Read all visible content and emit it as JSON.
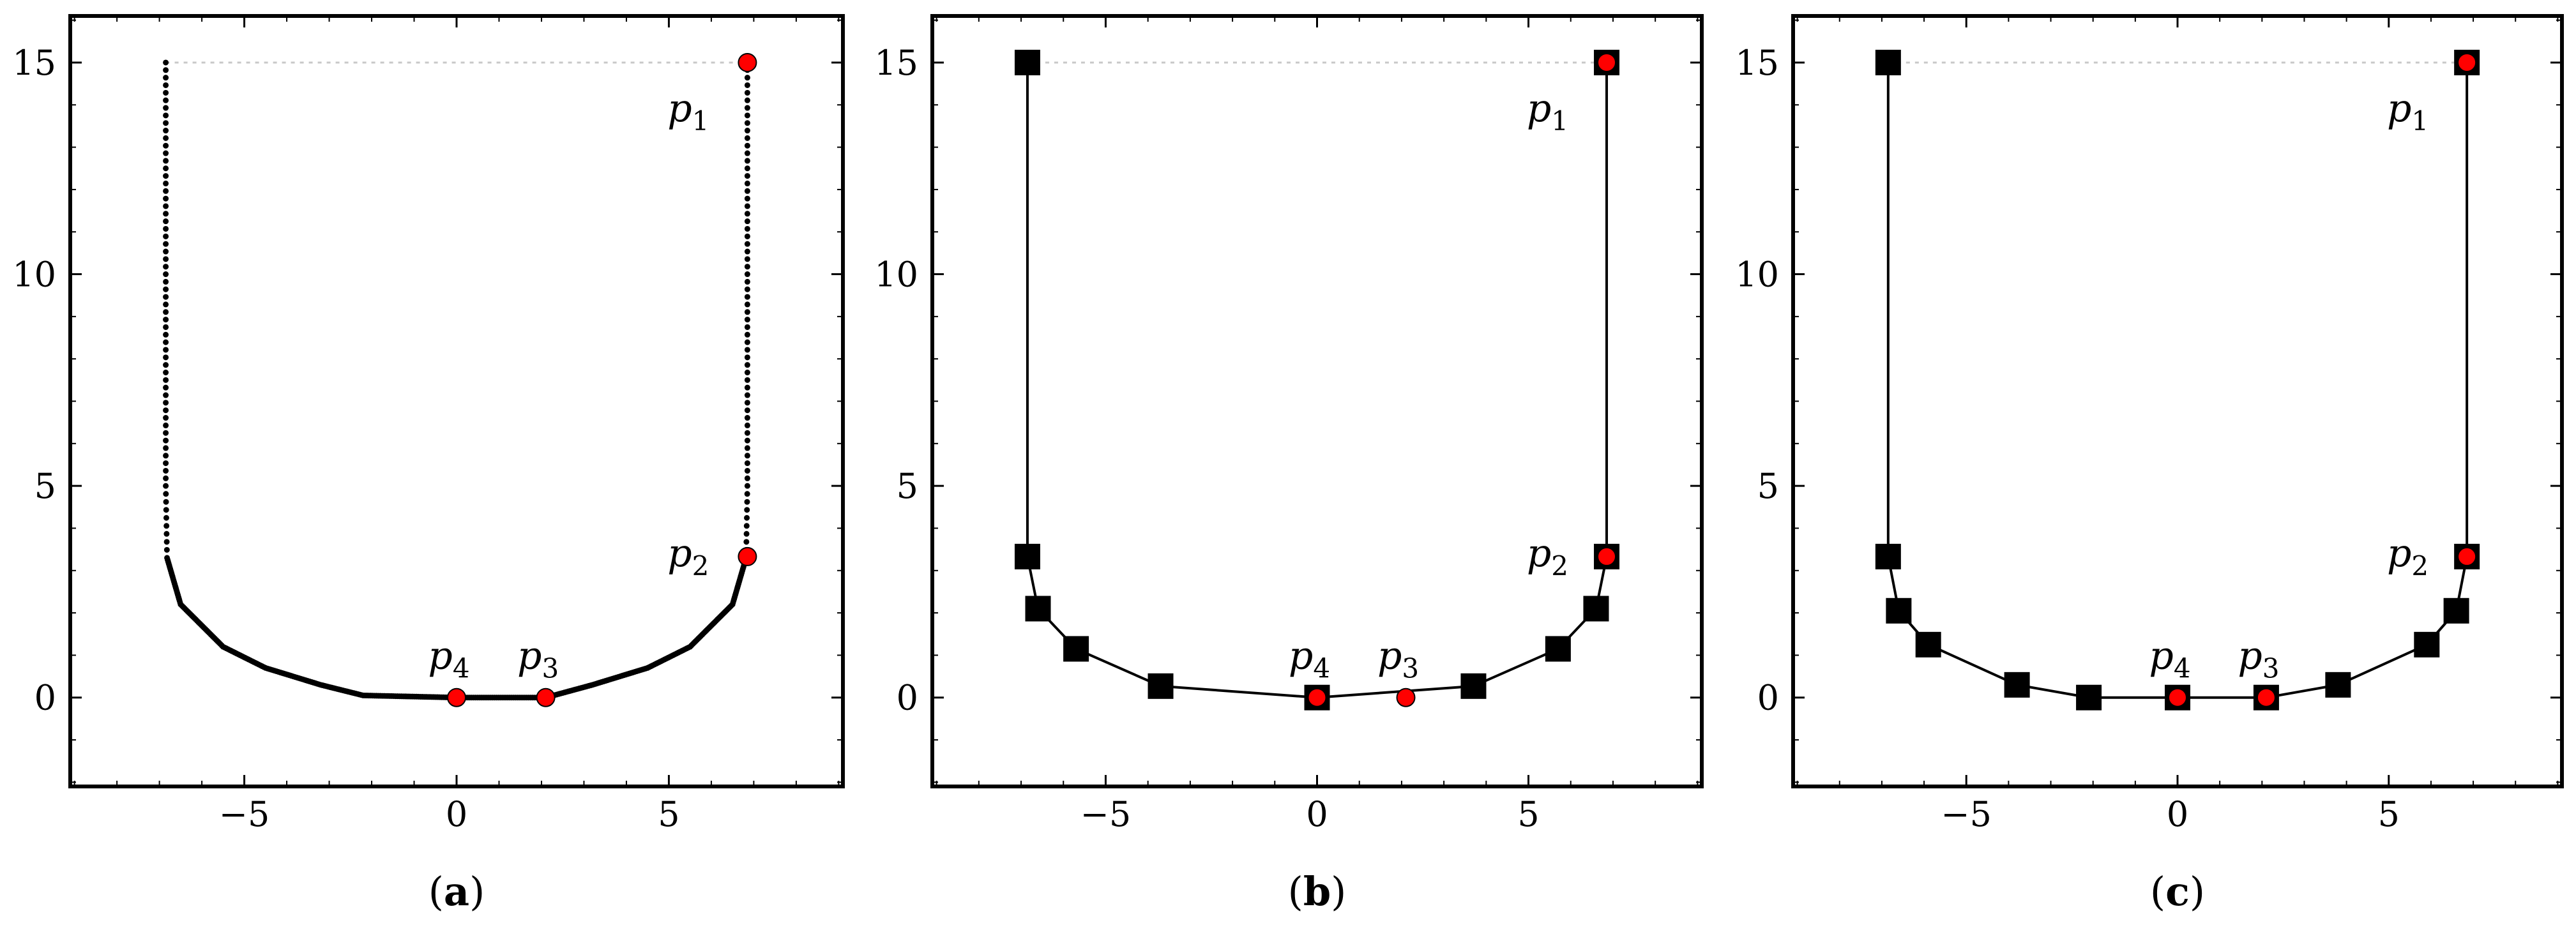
{
  "chart_data": [
    {
      "type": "scatter",
      "caption_letter": "a",
      "xlim": [
        -9.1,
        9.1
      ],
      "ylim": [
        -2.1,
        16.1
      ],
      "xticks": [
        -5,
        0,
        5
      ],
      "yticks": [
        0,
        5,
        10,
        15
      ],
      "xtick_labels": [
        "−5",
        "0",
        "5"
      ],
      "ytick_labels": [
        "0",
        "5",
        "10",
        "15"
      ],
      "guide_line": {
        "y": 15,
        "x_from": -6.85,
        "x_to": 6.85
      },
      "curve": {
        "style": "dotted",
        "points": [
          [
            -6.85,
            15
          ],
          [
            -6.85,
            10
          ],
          [
            -6.85,
            5
          ],
          [
            -6.82,
            3.3
          ],
          [
            -6.5,
            2.2
          ],
          [
            -5.5,
            1.2
          ],
          [
            -4.5,
            0.7
          ],
          [
            -3.2,
            0.3
          ],
          [
            -2.2,
            0.05
          ],
          [
            0,
            0
          ],
          [
            2.1,
            0
          ],
          [
            3.2,
            0.3
          ],
          [
            4.5,
            0.7
          ],
          [
            5.5,
            1.2
          ],
          [
            6.5,
            2.2
          ],
          [
            6.82,
            3.3
          ],
          [
            6.85,
            5
          ],
          [
            6.85,
            10
          ],
          [
            6.85,
            15
          ]
        ]
      },
      "markers": [],
      "highlight_points": [
        {
          "label": "p",
          "sub": "1",
          "x": 6.85,
          "y": 15,
          "label_pos": "below-left"
        },
        {
          "label": "p",
          "sub": "2",
          "x": 6.85,
          "y": 3.33,
          "label_pos": "left"
        },
        {
          "label": "p",
          "sub": "3",
          "x": 2.1,
          "y": 0,
          "label_pos": "above"
        },
        {
          "label": "p",
          "sub": "4",
          "x": 0,
          "y": 0,
          "label_pos": "above"
        }
      ]
    },
    {
      "type": "line",
      "caption_letter": "b",
      "xlim": [
        -9.1,
        9.1
      ],
      "ylim": [
        -2.1,
        16.1
      ],
      "xticks": [
        -5,
        0,
        5
      ],
      "yticks": [
        0,
        5,
        10,
        15
      ],
      "xtick_labels": [
        "−5",
        "0",
        "5"
      ],
      "ytick_labels": [
        "0",
        "5",
        "10",
        "15"
      ],
      "guide_line": {
        "y": 15,
        "x_from": -6.85,
        "x_to": 6.85
      },
      "line_points": [
        [
          -6.85,
          15
        ],
        [
          -6.85,
          3.33
        ],
        [
          -6.6,
          2.1
        ],
        [
          -5.7,
          1.15
        ],
        [
          -3.7,
          0.27
        ],
        [
          0,
          0
        ],
        [
          3.7,
          0.27
        ],
        [
          5.7,
          1.15
        ],
        [
          6.6,
          2.1
        ],
        [
          6.85,
          3.33
        ],
        [
          6.85,
          15
        ]
      ],
      "markers": [
        [
          -6.85,
          15
        ],
        [
          -6.85,
          3.33
        ],
        [
          -6.6,
          2.1
        ],
        [
          -5.7,
          1.15
        ],
        [
          -3.7,
          0.27
        ],
        [
          0,
          0
        ],
        [
          3.7,
          0.27
        ],
        [
          5.7,
          1.15
        ],
        [
          6.6,
          2.1
        ],
        [
          6.85,
          3.33
        ],
        [
          6.85,
          15
        ]
      ],
      "highlight_points": [
        {
          "label": "p",
          "sub": "1",
          "x": 6.85,
          "y": 15,
          "label_pos": "below-left"
        },
        {
          "label": "p",
          "sub": "2",
          "x": 6.85,
          "y": 3.33,
          "label_pos": "left"
        },
        {
          "label": "p",
          "sub": "3",
          "x": 2.1,
          "y": 0,
          "label_pos": "above"
        },
        {
          "label": "p",
          "sub": "4",
          "x": 0,
          "y": 0,
          "label_pos": "above"
        }
      ]
    },
    {
      "type": "line",
      "caption_letter": "c",
      "xlim": [
        -9.1,
        9.1
      ],
      "ylim": [
        -2.1,
        16.1
      ],
      "xticks": [
        -5,
        0,
        5
      ],
      "yticks": [
        0,
        5,
        10,
        15
      ],
      "xtick_labels": [
        "−5",
        "0",
        "5"
      ],
      "ytick_labels": [
        "0",
        "5",
        "10",
        "15"
      ],
      "guide_line": {
        "y": 15,
        "x_from": -6.85,
        "x_to": 6.85
      },
      "line_points": [
        [
          -6.85,
          15
        ],
        [
          -6.85,
          3.33
        ],
        [
          -6.6,
          2.05
        ],
        [
          -5.9,
          1.25
        ],
        [
          -3.8,
          0.3
        ],
        [
          -2.1,
          0
        ],
        [
          0,
          0
        ],
        [
          2.1,
          0
        ],
        [
          3.8,
          0.3
        ],
        [
          5.9,
          1.25
        ],
        [
          6.6,
          2.05
        ],
        [
          6.85,
          3.33
        ],
        [
          6.85,
          15
        ]
      ],
      "markers": [
        [
          -6.85,
          15
        ],
        [
          -6.85,
          3.33
        ],
        [
          -6.6,
          2.05
        ],
        [
          -5.9,
          1.25
        ],
        [
          -3.8,
          0.3
        ],
        [
          -2.1,
          0
        ],
        [
          0,
          0
        ],
        [
          2.1,
          0
        ],
        [
          3.8,
          0.3
        ],
        [
          5.9,
          1.25
        ],
        [
          6.6,
          2.05
        ],
        [
          6.85,
          3.33
        ],
        [
          6.85,
          15
        ]
      ],
      "highlight_points": [
        {
          "label": "p",
          "sub": "1",
          "x": 6.85,
          "y": 15,
          "label_pos": "below-left"
        },
        {
          "label": "p",
          "sub": "2",
          "x": 6.85,
          "y": 3.33,
          "label_pos": "left"
        },
        {
          "label": "p",
          "sub": "3",
          "x": 2.1,
          "y": 0,
          "label_pos": "above"
        },
        {
          "label": "p",
          "sub": "4",
          "x": 0,
          "y": 0,
          "label_pos": "above"
        }
      ]
    }
  ],
  "colors": {
    "axes": "#000000",
    "curve": "#000000",
    "marker": "#000000",
    "highlight": "#ff0000",
    "guide": "#c8c8c8"
  }
}
